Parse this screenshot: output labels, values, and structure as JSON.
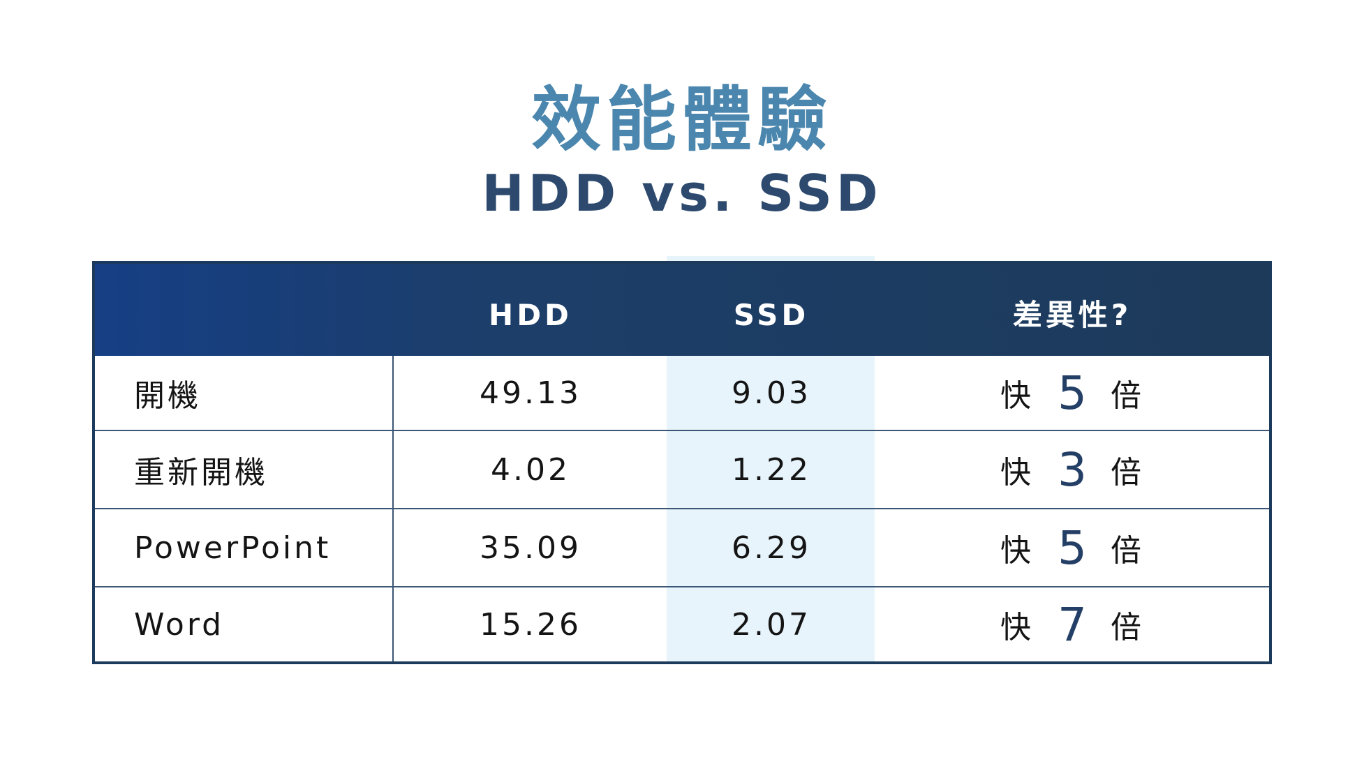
{
  "title": "效能體驗",
  "subtitle": "HDD vs. SSD",
  "colors": {
    "title": "#4a86ad",
    "subtitle": "#2d4a6e",
    "header_bg_start": "#163f85",
    "header_bg_end": "#1d3a5a",
    "ssd_highlight": "#e8f4fb",
    "border": "#1c3a5c"
  },
  "chart_data": {
    "type": "table",
    "columns": [
      "",
      "HDD",
      "SSD",
      "差異性?"
    ],
    "rows": [
      {
        "label": "開機",
        "hdd": "49.13",
        "ssd": "9.03",
        "diff_pre": "快",
        "diff_multiple": "5",
        "diff_post": "倍"
      },
      {
        "label": "重新開機",
        "hdd": "4.02",
        "ssd": "1.22",
        "diff_pre": "快",
        "diff_multiple": "3",
        "diff_post": "倍"
      },
      {
        "label": "PowerPoint",
        "hdd": "35.09",
        "ssd": "6.29",
        "diff_pre": "快",
        "diff_multiple": "5",
        "diff_post": "倍"
      },
      {
        "label": "Word",
        "hdd": "15.26",
        "ssd": "2.07",
        "diff_pre": "快",
        "diff_multiple": "7",
        "diff_post": "倍"
      }
    ]
  }
}
